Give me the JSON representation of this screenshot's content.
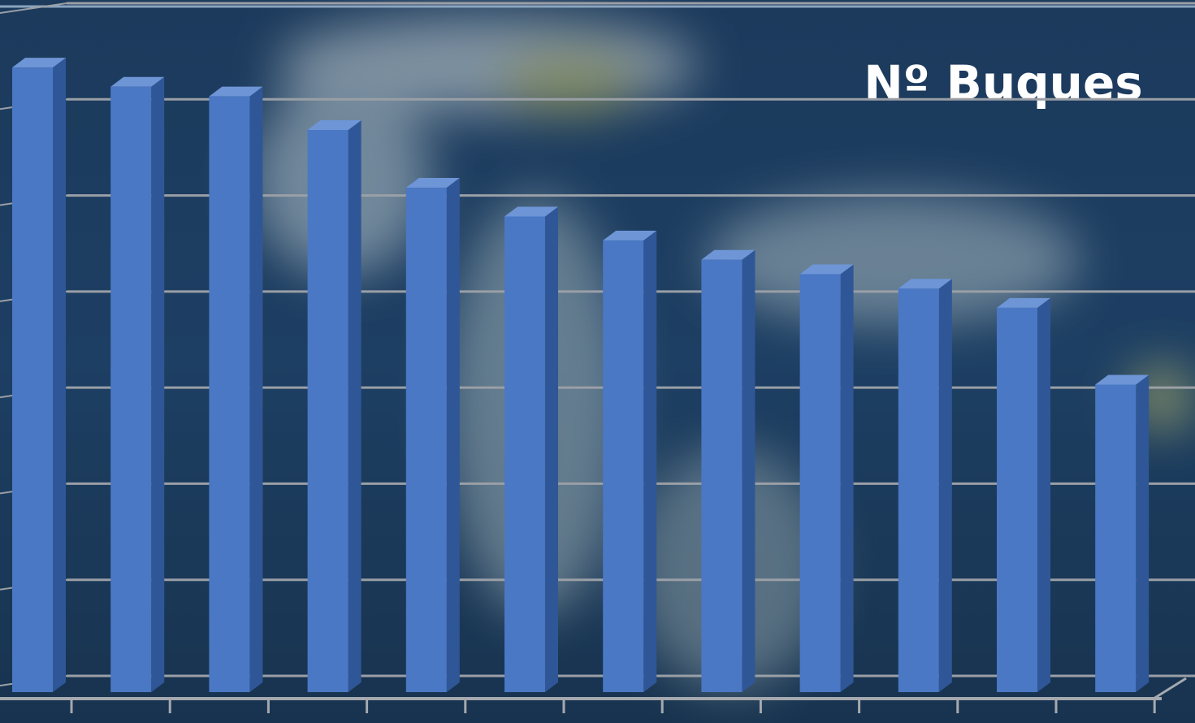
{
  "chart_data": {
    "type": "bar3d",
    "title": "Nº Buques",
    "categories": [
      null,
      null,
      null,
      null,
      null,
      null,
      null,
      null,
      null,
      null,
      null,
      null
    ],
    "values": [
      6.5,
      6.3,
      6.2,
      5.85,
      5.25,
      4.95,
      4.7,
      4.5,
      4.35,
      4.2,
      4.0,
      3.2
    ],
    "color": "#4a78c4",
    "ylim": [
      0,
      7
    ],
    "yticks": [
      0,
      1,
      2,
      3,
      4,
      5,
      6,
      7
    ],
    "grid": true
  }
}
